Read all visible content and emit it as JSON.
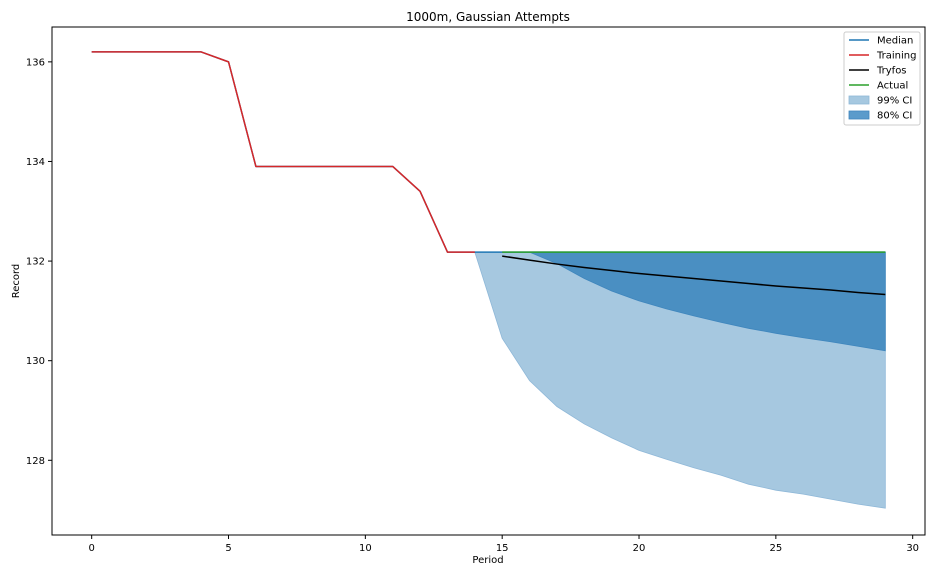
{
  "chart_data": {
    "type": "line",
    "title": "1000m, Gaussian Attempts",
    "xlabel": "Period",
    "ylabel": "Record",
    "xlim": [
      -1.45,
      30.45
    ],
    "ylim": [
      126.5,
      136.7
    ],
    "xticks": [
      0,
      5,
      10,
      15,
      20,
      25,
      30
    ],
    "yticks": [
      128,
      130,
      132,
      134,
      136
    ],
    "grid": false,
    "legend_position": "top-right",
    "legend": [
      "Median",
      "Training",
      "Tryfos",
      "Actual",
      "99% CI",
      "80% CI"
    ],
    "colors": {
      "median": "#1f77b4",
      "training": "#d62728",
      "tryfos": "#000000",
      "actual": "#2ca02c",
      "ci99": "#a6c8e0",
      "ci80": "#4a8fc2"
    },
    "series": [
      {
        "name": "Median",
        "x": [
          0,
          1,
          2,
          3,
          4,
          5,
          6,
          7,
          8,
          9,
          10,
          11,
          12,
          13,
          14,
          15,
          16,
          17,
          18,
          19,
          20,
          21,
          22,
          23,
          24,
          25,
          26,
          27,
          28,
          29
        ],
        "values": [
          136.2,
          136.2,
          136.2,
          136.2,
          136.2,
          136.0,
          133.9,
          133.9,
          133.9,
          133.9,
          133.9,
          133.9,
          133.4,
          132.18,
          132.18,
          132.18,
          132.18,
          132.18,
          132.18,
          132.18,
          132.18,
          132.18,
          132.18,
          132.18,
          132.18,
          132.18,
          132.18,
          132.18,
          132.18,
          132.18
        ]
      },
      {
        "name": "Training",
        "x": [
          0,
          1,
          2,
          3,
          4,
          5,
          6,
          7,
          8,
          9,
          10,
          11,
          12,
          13,
          14
        ],
        "values": [
          136.2,
          136.2,
          136.2,
          136.2,
          136.2,
          136.0,
          133.9,
          133.9,
          133.9,
          133.9,
          133.9,
          133.9,
          133.4,
          132.18,
          132.18
        ]
      },
      {
        "name": "Tryfos",
        "x": [
          15,
          16,
          17,
          18,
          19,
          20,
          21,
          22,
          23,
          24,
          25,
          26,
          27,
          28,
          29
        ],
        "values": [
          132.1,
          132.02,
          131.94,
          131.87,
          131.81,
          131.75,
          131.7,
          131.65,
          131.6,
          131.55,
          131.5,
          131.46,
          131.42,
          131.37,
          131.33
        ]
      },
      {
        "name": "Actual",
        "x": [
          15,
          16,
          17,
          18,
          19,
          20,
          21,
          22,
          23,
          24,
          25,
          26,
          27,
          28,
          29
        ],
        "values": [
          132.18,
          132.18,
          132.18,
          132.18,
          132.18,
          132.18,
          132.18,
          132.18,
          132.18,
          132.18,
          132.18,
          132.18,
          132.18,
          132.18,
          132.18
        ]
      }
    ],
    "bands": [
      {
        "name": "99% CI",
        "x": [
          14,
          15,
          16,
          17,
          18,
          19,
          20,
          21,
          22,
          23,
          24,
          25,
          26,
          27,
          28,
          29
        ],
        "upper": [
          132.18,
          132.18,
          132.18,
          132.18,
          132.18,
          132.18,
          132.18,
          132.18,
          132.18,
          132.18,
          132.18,
          132.18,
          132.18,
          132.18,
          132.18,
          132.18
        ],
        "lower": [
          132.18,
          130.45,
          129.6,
          129.08,
          128.73,
          128.45,
          128.2,
          128.02,
          127.85,
          127.7,
          127.52,
          127.4,
          127.32,
          127.22,
          127.12,
          127.04
        ]
      },
      {
        "name": "80% CI",
        "x": [
          14,
          15,
          16,
          17,
          18,
          19,
          20,
          21,
          22,
          23,
          24,
          25,
          26,
          27,
          28,
          29
        ],
        "upper": [
          132.18,
          132.18,
          132.18,
          132.18,
          132.18,
          132.18,
          132.18,
          132.18,
          132.18,
          132.18,
          132.18,
          132.18,
          132.18,
          132.18,
          132.18,
          132.18
        ],
        "lower": [
          132.18,
          132.18,
          132.18,
          131.95,
          131.65,
          131.4,
          131.2,
          131.04,
          130.9,
          130.77,
          130.65,
          130.55,
          130.46,
          130.38,
          130.29,
          130.2
        ]
      }
    ]
  }
}
